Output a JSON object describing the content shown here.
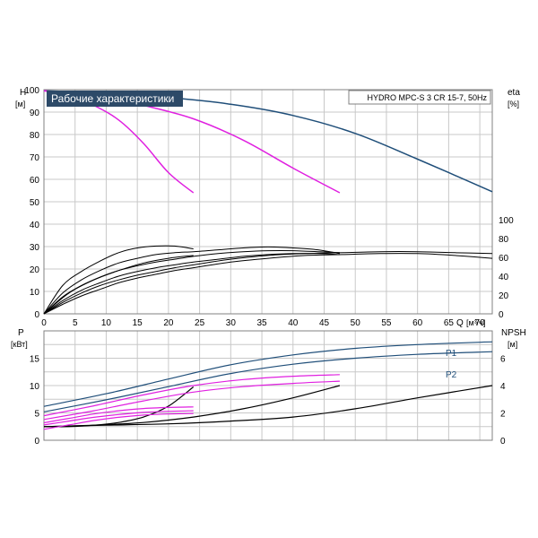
{
  "chart_data": [
    {
      "type": "line",
      "title": "Рабочие характеристики",
      "model": "HYDRO MPC-S 3 CR 15-7, 50Hz",
      "ylabel_left": "H",
      "ylabel_left_unit": "[м]",
      "ylabel_right": "eta",
      "ylabel_right_unit": "[%]",
      "xlabel": "Q",
      "xlabel_unit": "[м³/ч]",
      "xlim": [
        0,
        72
      ],
      "ylim": [
        0,
        100
      ],
      "eta_ylim": [
        0,
        100
      ],
      "x_ticks": [
        "0",
        "5",
        "10",
        "15",
        "20",
        "25",
        "30",
        "35",
        "40",
        "45",
        "50",
        "55",
        "60",
        "65",
        "70"
      ],
      "y_ticks": [
        "0",
        "10",
        "20",
        "30",
        "40",
        "50",
        "60",
        "70",
        "80",
        "90",
        "100"
      ],
      "eta_ticks": [
        "0",
        "20",
        "40",
        "60",
        "80",
        "100"
      ],
      "grid": true,
      "colors": {
        "head_max": "#1f4e79",
        "head_partial": "#e020e0",
        "eta": "#000000",
        "grid": "#c8c8c8"
      },
      "head_series": [
        {
          "color": "head_max",
          "x": [
            0,
            10,
            20,
            30,
            40,
            50,
            60,
            72
          ],
          "y": [
            99.5,
            98.5,
            96.5,
            93.5,
            88.5,
            80.5,
            69,
            54.5
          ]
        },
        {
          "color": "head_partial",
          "x": [
            0,
            8,
            16,
            24,
            32,
            40,
            47.5
          ],
          "y": [
            99.5,
            97.5,
            93,
            87,
            77.5,
            65,
            54
          ]
        },
        {
          "color": "head_partial",
          "x": [
            0,
            4,
            8,
            12,
            16,
            20,
            24
          ],
          "y": [
            99.5,
            97.5,
            93,
            86.5,
            76,
            63,
            54
          ]
        }
      ],
      "eta_series": [
        {
          "x": [
            0,
            3,
            6,
            9,
            12,
            15,
            18,
            21,
            24
          ],
          "y": [
            0,
            30,
            45,
            56,
            65,
            70,
            72,
            72,
            69
          ]
        },
        {
          "x": [
            0,
            4,
            8,
            12,
            16,
            20,
            24
          ],
          "y": [
            0,
            22,
            36,
            46,
            54,
            59,
            62
          ]
        },
        {
          "x": [
            0,
            3,
            6,
            9,
            12,
            15,
            18,
            21,
            24,
            28,
            32,
            36,
            40,
            44,
            47.5
          ],
          "y": [
            0,
            22,
            36,
            46,
            54,
            59,
            63,
            65,
            66,
            68,
            70,
            71,
            70,
            68,
            64
          ]
        },
        {
          "x": [
            0,
            3,
            6,
            9,
            12,
            15,
            18,
            21,
            24,
            28,
            32,
            36,
            40,
            44,
            47.5
          ],
          "y": [
            0,
            18,
            30,
            39,
            46,
            51,
            55,
            58,
            61,
            64,
            66,
            67,
            67,
            66,
            65
          ]
        },
        {
          "x": [
            0,
            3,
            6,
            9,
            12,
            15,
            18,
            21,
            24,
            28,
            32,
            36,
            40,
            44,
            47.5
          ],
          "y": [
            0,
            14,
            25,
            33,
            40,
            45,
            49,
            52,
            55,
            58,
            61,
            63,
            64,
            64,
            63
          ]
        },
        {
          "x": [
            0,
            3,
            6,
            9,
            12,
            15,
            18,
            21,
            24,
            30,
            36,
            42,
            48,
            54,
            60,
            66,
            72
          ],
          "y": [
            0,
            12,
            22,
            30,
            36,
            41,
            45,
            49,
            52,
            58,
            62,
            64,
            65,
            66,
            66,
            65,
            64
          ]
        },
        {
          "x": [
            0,
            3,
            6,
            9,
            12,
            15,
            18,
            21,
            24,
            30,
            36,
            42,
            48,
            54,
            60,
            66,
            72
          ],
          "y": [
            0,
            10,
            19,
            26,
            33,
            38,
            42,
            46,
            49,
            55,
            59,
            62,
            63,
            64,
            64,
            62,
            59
          ]
        }
      ]
    },
    {
      "type": "line",
      "ylabel_left": "P",
      "ylabel_left_unit": "[кВт]",
      "ylabel_right": "NPSH",
      "ylabel_right_unit": "[м]",
      "xlim": [
        0,
        72
      ],
      "ylim": [
        0,
        20
      ],
      "npsh_ylim": [
        0,
        8
      ],
      "x_ticks": [
        "0",
        "5",
        "10",
        "15",
        "20",
        "25",
        "30",
        "35",
        "40",
        "45",
        "50",
        "55",
        "60",
        "65",
        "70"
      ],
      "p_ticks": [
        "0",
        "5",
        "10",
        "15"
      ],
      "npsh_ticks": [
        "0",
        "2",
        "4",
        "6"
      ],
      "grid": true,
      "legend_labels": [
        "P1",
        "P2"
      ],
      "colors": {
        "power_max": "#1f4e79",
        "power_partial": "#e020e0",
        "npsh": "#000000"
      },
      "power_series": [
        {
          "name": "P1",
          "color": "power_max",
          "x": [
            0,
            10,
            20,
            30,
            40,
            50,
            60,
            72
          ],
          "y": [
            6.2,
            8.5,
            11.2,
            13.8,
            15.6,
            16.8,
            17.5,
            18.0
          ]
        },
        {
          "name": "P2",
          "color": "power_max",
          "x": [
            0,
            10,
            20,
            30,
            40,
            50,
            60,
            72
          ],
          "y": [
            5.2,
            7.4,
            9.8,
            12.2,
            13.9,
            15.0,
            15.7,
            16.2
          ]
        },
        {
          "color": "power_partial",
          "x": [
            0,
            8,
            16,
            24,
            32,
            40,
            47.5
          ],
          "y": [
            4.5,
            6.3,
            8.3,
            10.0,
            11.1,
            11.7,
            12.0
          ]
        },
        {
          "color": "power_partial",
          "x": [
            0,
            8,
            16,
            24,
            32,
            40,
            47.5
          ],
          "y": [
            3.8,
            5.4,
            7.2,
            8.8,
            9.8,
            10.4,
            10.8
          ]
        },
        {
          "color": "power_partial",
          "x": [
            0,
            4,
            8,
            12,
            16,
            20,
            24
          ],
          "y": [
            3.2,
            4.0,
            4.8,
            5.4,
            5.8,
            6.0,
            6.1
          ]
        },
        {
          "color": "power_partial",
          "x": [
            0,
            4,
            8,
            12,
            16,
            20,
            24
          ],
          "y": [
            2.8,
            3.5,
            4.2,
            4.7,
            5.1,
            5.3,
            5.4
          ]
        },
        {
          "color": "power_partial",
          "x": [
            0,
            4,
            8,
            12,
            16,
            20,
            24
          ],
          "y": [
            2.0,
            2.8,
            3.6,
            4.2,
            4.6,
            4.8,
            4.9
          ]
        }
      ],
      "npsh_series": [
        {
          "x": [
            0,
            4,
            8,
            12,
            16,
            20,
            24
          ],
          "y": [
            1.0,
            1.0,
            1.1,
            1.3,
            1.7,
            2.5,
            3.9
          ]
        },
        {
          "x": [
            0,
            8,
            16,
            24,
            32,
            40,
            47.5
          ],
          "y": [
            1.0,
            1.1,
            1.3,
            1.7,
            2.3,
            3.1,
            4.0
          ]
        },
        {
          "x": [
            0,
            10,
            20,
            30,
            40,
            50,
            60,
            72
          ],
          "y": [
            1.0,
            1.1,
            1.2,
            1.4,
            1.7,
            2.3,
            3.1,
            4.0
          ]
        }
      ]
    }
  ]
}
